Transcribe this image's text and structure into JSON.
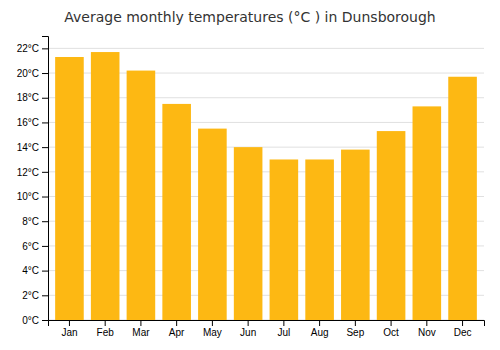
{
  "chart_data": {
    "type": "bar",
    "title": "Average monthly temperatures (°C ) in Dunsborough",
    "categories": [
      "Jan",
      "Feb",
      "Mar",
      "Apr",
      "May",
      "Jun",
      "Jul",
      "Aug",
      "Sep",
      "Oct",
      "Nov",
      "Dec"
    ],
    "values": [
      21.3,
      21.7,
      20.2,
      17.5,
      15.5,
      14.0,
      13.0,
      13.0,
      13.8,
      15.3,
      17.3,
      19.7
    ],
    "color": "#FDB813",
    "ylim": [
      0,
      23
    ],
    "yticks": [
      {
        "value": 0,
        "label": "0°C"
      },
      {
        "value": 2,
        "label": "2°C"
      },
      {
        "value": 4,
        "label": "4°C"
      },
      {
        "value": 6,
        "label": "6°C"
      },
      {
        "value": 8,
        "label": "8°C"
      },
      {
        "value": 10,
        "label": "10°C"
      },
      {
        "value": 12,
        "label": "12°C"
      },
      {
        "value": 14,
        "label": "14°C"
      },
      {
        "value": 16,
        "label": "16°C"
      },
      {
        "value": 18,
        "label": "18°C"
      },
      {
        "value": 20,
        "label": "20°C"
      },
      {
        "value": 22,
        "label": "22°C"
      }
    ],
    "grid": true
  }
}
